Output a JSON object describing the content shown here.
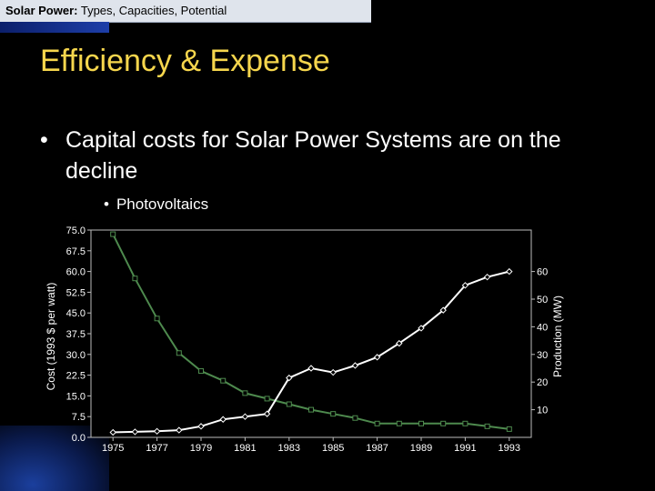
{
  "header": {
    "topic_bold": "Solar Power:",
    "topic_rest": " Types, Capacities, Potential"
  },
  "slide": {
    "title": "Efficiency & Expense",
    "bullet_main": "Capital costs for Solar Power Systems are on the decline",
    "bullet_sub": "Photovoltaics",
    "bullet_glyph": "•"
  },
  "colors": {
    "title": "#f6d64d",
    "cost_line": "#4e8a4e",
    "production_line": "#ffffff",
    "plot_bg": "#000000"
  },
  "chart_data": {
    "type": "line",
    "xlabel": "",
    "ylabel_left": "Cost (1993 $ per watt)",
    "ylabel_right": "Production (MW)",
    "x_ticks": [
      "1975",
      "1977",
      "1979",
      "1981",
      "1983",
      "1985",
      "1987",
      "1989",
      "1991",
      "1993"
    ],
    "xlim": [
      1974,
      1994
    ],
    "ylim_left": [
      0,
      75
    ],
    "ylim_right": [
      0,
      75
    ],
    "y_left_ticks": [
      "0.0",
      "7.5",
      "15.0",
      "22.5",
      "30.0",
      "37.5",
      "45.0",
      "52.5",
      "60.0",
      "67.5",
      "75.0"
    ],
    "y_right_ticks": [
      "10",
      "20",
      "30",
      "40",
      "50",
      "60"
    ],
    "grid": false,
    "series": [
      {
        "axis": "left",
        "color": "#4e8a4e",
        "x": [
          1975,
          1976,
          1977,
          1978,
          1979,
          1980,
          1981,
          1982,
          1983,
          1984,
          1985,
          1986,
          1987,
          1988,
          1989,
          1990,
          1991,
          1992,
          1993
        ],
        "values": [
          73.5,
          57.5,
          43.0,
          30.5,
          24.0,
          20.5,
          16.0,
          14.0,
          12.0,
          10.0,
          8.5,
          7.0,
          5.0,
          5.0,
          5.0,
          5.0,
          5.0,
          4.0,
          3.0
        ]
      },
      {
        "axis": "right",
        "color": "#ffffff",
        "x": [
          1975,
          1976,
          1977,
          1978,
          1979,
          1980,
          1981,
          1982,
          1983,
          1984,
          1985,
          1986,
          1987,
          1988,
          1989,
          1990,
          1991,
          1992,
          1993
        ],
        "values": [
          1.8,
          2.0,
          2.2,
          2.6,
          4.0,
          6.5,
          7.5,
          8.5,
          21.5,
          25.0,
          23.5,
          26.0,
          29.0,
          34.0,
          39.5,
          46.0,
          55.0,
          58.0,
          60.0
        ]
      }
    ]
  }
}
